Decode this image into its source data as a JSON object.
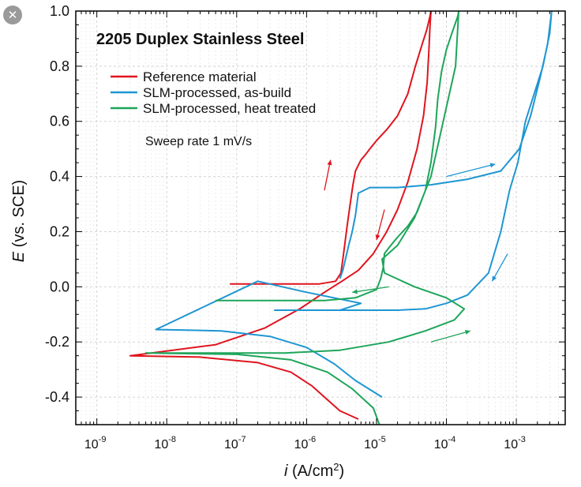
{
  "close_button": {
    "glyph": "✕"
  },
  "chart_data": {
    "type": "line",
    "title": "2205 Duplex Stainless Steel",
    "annotation": "Sweep rate 1 mV/s",
    "xlabel": {
      "italic": "i",
      "rest": " (A/cm",
      "sup": "2",
      "close": ")"
    },
    "ylabel": {
      "italic": "E",
      "rest": " (vs. SCE)"
    },
    "x_scale": "log",
    "xlim": [
      5e-10,
      0.005
    ],
    "ylim": [
      -0.5,
      1.0
    ],
    "x_ticks": [
      {
        "value": 1e-09,
        "base": "10",
        "exp": "-9"
      },
      {
        "value": 1e-08,
        "base": "10",
        "exp": "-8"
      },
      {
        "value": 1e-07,
        "base": "10",
        "exp": "-7"
      },
      {
        "value": 1e-06,
        "base": "10",
        "exp": "-6"
      },
      {
        "value": 1e-05,
        "base": "10",
        "exp": "-5"
      },
      {
        "value": 0.0001,
        "base": "10",
        "exp": "-4"
      },
      {
        "value": 0.001,
        "base": "10",
        "exp": "-3"
      }
    ],
    "y_ticks": [
      {
        "value": 1.0,
        "label": "1.0"
      },
      {
        "value": 0.8,
        "label": "0.8"
      },
      {
        "value": 0.6,
        "label": "0.6"
      },
      {
        "value": 0.4,
        "label": "0.4"
      },
      {
        "value": 0.2,
        "label": "0.2"
      },
      {
        "value": 0.0,
        "label": "0.0"
      },
      {
        "value": -0.2,
        "label": "-0.2"
      },
      {
        "value": -0.4,
        "label": "-0.4"
      }
    ],
    "grid": true,
    "legend_position": "top-left",
    "series": [
      {
        "name": "Reference material",
        "color": "#e0141e",
        "x": [
          8e-08,
          4e-07,
          1.5e-06,
          2.6e-06,
          3.1e-06,
          3.3e-06,
          3.5e-06,
          3.8e-06,
          4.2e-06,
          4.6e-06,
          5e-06,
          6e-06,
          7e-06,
          8e-06,
          1e-05,
          1.4e-05,
          2e-05,
          2.8e-05,
          3.6e-05,
          4.5e-05,
          5.2e-05,
          5.8e-05,
          6e-05,
          5.8e-05,
          5.6e-05,
          5.3e-05,
          4.7e-05,
          3.8e-05,
          2.8e-05,
          2e-05,
          1.4e-05,
          9e-06,
          5.5e-06,
          3.2e-06,
          1.8e-06,
          8e-07,
          2.5e-07,
          5e-08,
          3e-09,
          3e-08,
          2e-07,
          6e-07,
          1.2e-06,
          2e-06,
          3e-06,
          5.5e-06
        ],
        "y": [
          0.01,
          0.01,
          0.01,
          0.02,
          0.05,
          0.1,
          0.15,
          0.22,
          0.3,
          0.37,
          0.42,
          0.46,
          0.48,
          0.5,
          0.53,
          0.57,
          0.62,
          0.7,
          0.8,
          0.88,
          0.93,
          0.98,
          1.0,
          0.94,
          0.85,
          0.74,
          0.62,
          0.5,
          0.38,
          0.28,
          0.2,
          0.12,
          0.06,
          0.02,
          -0.02,
          -0.08,
          -0.15,
          -0.21,
          -0.25,
          -0.255,
          -0.275,
          -0.31,
          -0.36,
          -0.41,
          -0.45,
          -0.48
        ]
      },
      {
        "name": "SLM-processed, as-build",
        "color": "#1e96d2",
        "x": [
          3e-06,
          3.3e-06,
          3.6e-06,
          4e-06,
          4.5e-06,
          5e-06,
          5.5e-06,
          8e-06,
          2e-05,
          6e-05,
          0.0002,
          0.0006,
          0.0011,
          0.0016,
          0.0022,
          0.0028,
          0.0031,
          0.0032,
          0.003,
          0.0024,
          0.0018,
          0.00135,
          0.00105,
          0.0008,
          0.0006,
          0.0004,
          0.0002,
          0.0001,
          5e-05,
          2e-05,
          1e-05,
          5e-06,
          3.5e-07,
          3e-06,
          6e-06,
          1e-06,
          2e-07,
          7e-09,
          6e-08,
          3e-07,
          1e-06,
          2.5e-06,
          5e-06,
          1.2e-05
        ],
        "y": [
          0.03,
          0.06,
          0.1,
          0.15,
          0.2,
          0.26,
          0.34,
          0.36,
          0.36,
          0.37,
          0.39,
          0.42,
          0.5,
          0.62,
          0.76,
          0.88,
          0.97,
          1.0,
          0.92,
          0.8,
          0.7,
          0.6,
          0.45,
          0.35,
          0.2,
          0.05,
          -0.03,
          -0.06,
          -0.08,
          -0.085,
          -0.085,
          -0.085,
          -0.085,
          -0.085,
          -0.06,
          -0.02,
          0.02,
          -0.155,
          -0.16,
          -0.18,
          -0.22,
          -0.28,
          -0.34,
          -0.4
        ]
      },
      {
        "name": "SLM-processed, heat treated",
        "color": "#1ea55a",
        "x": [
          5e-08,
          4e-07,
          1.8e-06,
          5e-06,
          1e-05,
          1.15e-05,
          1.25e-05,
          1.3e-05,
          1.6e-05,
          2e-05,
          2.8e-05,
          3.8e-05,
          5e-05,
          6e-05,
          7e-05,
          7.5e-05,
          8.5e-05,
          0.0001,
          0.00012,
          0.000145,
          0.00015,
          0.000135,
          9e-05,
          6e-05,
          3.5e-05,
          2e-05,
          1.2e-05,
          1.3e-05,
          3.5e-05,
          0.0001,
          0.00018,
          0.00013,
          5e-05,
          1.5e-05,
          3e-06,
          5e-07,
          5e-09,
          1e-07,
          6e-07,
          2e-06,
          4.5e-06,
          9e-06,
          1.1e-05
        ],
        "y": [
          -0.05,
          -0.05,
          -0.05,
          -0.04,
          -0.01,
          0.03,
          0.07,
          0.12,
          0.15,
          0.18,
          0.22,
          0.27,
          0.35,
          0.45,
          0.58,
          0.68,
          0.78,
          0.86,
          0.92,
          0.98,
          1.0,
          0.8,
          0.6,
          0.4,
          0.25,
          0.15,
          0.1,
          0.05,
          0.0,
          -0.04,
          -0.08,
          -0.12,
          -0.16,
          -0.2,
          -0.23,
          -0.24,
          -0.24,
          -0.245,
          -0.265,
          -0.31,
          -0.37,
          -0.44,
          -0.5
        ]
      }
    ],
    "arrows": [
      {
        "color": "#e0141e",
        "from": [
          1.8e-06,
          0.35
        ],
        "to": [
          2.2e-06,
          0.46
        ]
      },
      {
        "color": "#e0141e",
        "from": [
          1.3e-05,
          0.28
        ],
        "to": [
          1e-05,
          0.17
        ]
      },
      {
        "color": "#1e96d2",
        "from": [
          0.0001,
          0.4
        ],
        "to": [
          0.0005,
          0.445
        ]
      },
      {
        "color": "#1e96d2",
        "from": [
          0.00075,
          0.12
        ],
        "to": [
          0.00045,
          0.02
        ]
      },
      {
        "color": "#1ea55a",
        "from": [
          1.5e-05,
          0.0
        ],
        "to": [
          4.5e-06,
          -0.02
        ]
      },
      {
        "color": "#1ea55a",
        "from": [
          6e-05,
          -0.2
        ],
        "to": [
          0.00022,
          -0.16
        ]
      }
    ]
  }
}
